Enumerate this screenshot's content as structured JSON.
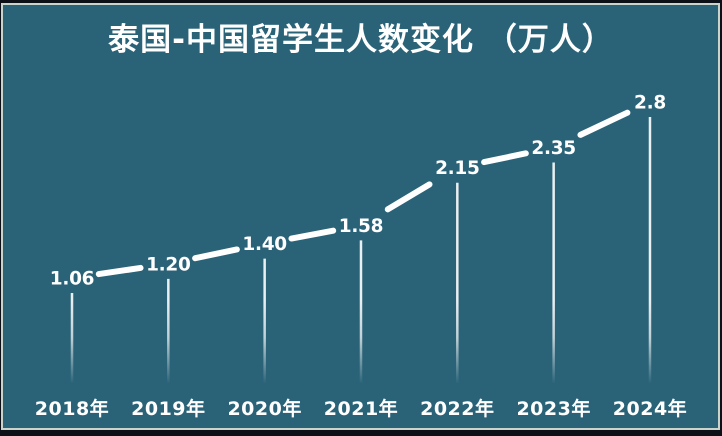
{
  "colors": {
    "background": "#2a6378",
    "ink": "#ffffff",
    "line": "#ffffff",
    "frame": "#c9d4cc",
    "outer": "#0d1117"
  },
  "chart_data": {
    "type": "line",
    "title": "泰国-中国留学生人数变化 （万人）",
    "categories": [
      "2018年",
      "2019年",
      "2020年",
      "2021年",
      "2022年",
      "2023年",
      "2024年"
    ],
    "values": [
      1.06,
      1.2,
      1.4,
      1.58,
      2.15,
      2.35,
      2.8
    ],
    "value_labels": [
      "1.06",
      "1.20",
      "1.40",
      "1.58",
      "2.15",
      "2.35",
      "2.8"
    ],
    "xlabel": "",
    "ylabel": "",
    "grid": false,
    "legend_position": "none",
    "axes_visible": false,
    "style": "lollipop-line, white on teal, labels above each point, fading drop lines to x labels"
  }
}
